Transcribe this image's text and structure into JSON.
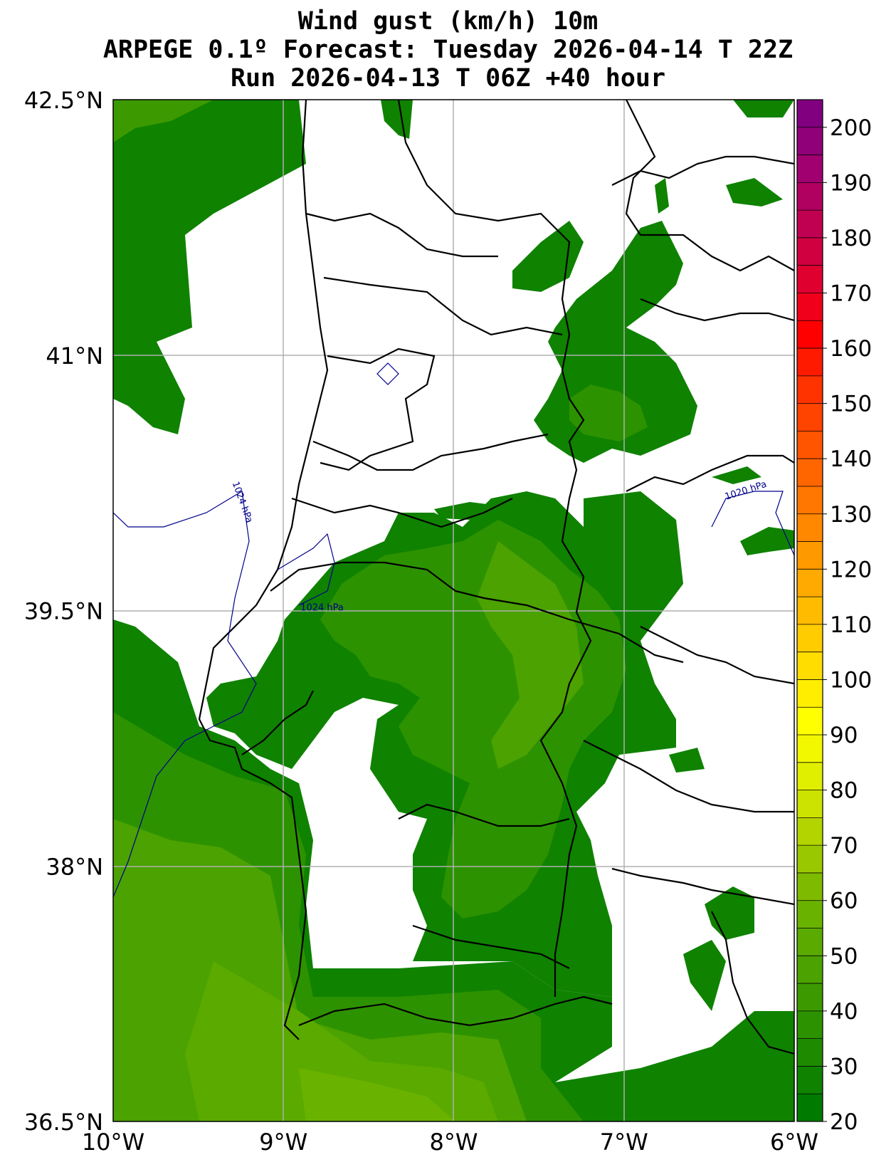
{
  "title": {
    "line1": "Wind gust (km/h) 10m",
    "line2": "ARPEGE 0.1º Forecast: Tuesday 2026-04-14 T 22Z",
    "line3": "Run 2026-04-13 T 06Z +40 hour"
  },
  "map": {
    "lon_range": [
      -10,
      -6
    ],
    "lat_range": [
      36.5,
      42.5
    ],
    "lon_ticks": [
      {
        "value": -10,
        "label": "10°W"
      },
      {
        "value": -9,
        "label": "9°W"
      },
      {
        "value": -8,
        "label": "8°W"
      },
      {
        "value": -7,
        "label": "7°W"
      },
      {
        "value": -6,
        "label": "6°W"
      }
    ],
    "lat_ticks": [
      {
        "value": 42.5,
        "label": "42.5°N"
      },
      {
        "value": 41,
        "label": "41°N"
      },
      {
        "value": 39.5,
        "label": "39.5°N"
      },
      {
        "value": 38,
        "label": "38°N"
      },
      {
        "value": 36.5,
        "label": "36.5°N"
      }
    ],
    "grid": true,
    "isobar_labels": [
      {
        "text": "1024 hPa",
        "lon": -9.3,
        "lat": 40.25
      },
      {
        "text": "1024 hPa",
        "lon": -8.9,
        "lat": 39.5
      },
      {
        "text": "1020 hPa",
        "lon": -6.4,
        "lat": 40.15
      }
    ],
    "isobar_color": "#00008b",
    "coast_color": "#000000"
  },
  "colorbar": {
    "min": 20,
    "max": 205,
    "step": 5,
    "tick_labels": [
      "20",
      "30",
      "40",
      "50",
      "60",
      "70",
      "80",
      "90",
      "100",
      "110",
      "120",
      "130",
      "140",
      "150",
      "160",
      "170",
      "180",
      "190",
      "200"
    ],
    "colors": [
      "#007a00",
      "#0f8200",
      "#1e8a00",
      "#2d9200",
      "#3c9a00",
      "#4ba200",
      "#5aaa00",
      "#69b200",
      "#7eba00",
      "#9ac800",
      "#b4d400",
      "#cce200",
      "#e0ee00",
      "#f2f800",
      "#ffff00",
      "#ffee00",
      "#ffdd00",
      "#ffcc00",
      "#ffbb00",
      "#ffaa00",
      "#ff9900",
      "#ff8800",
      "#ff7700",
      "#ff6600",
      "#ff5500",
      "#ff4400",
      "#ff3300",
      "#ff1a00",
      "#ff0000",
      "#f0001a",
      "#e00030",
      "#d00040",
      "#c00050",
      "#b00060",
      "#a00070",
      "#900078",
      "#800080"
    ]
  },
  "chart_data": {
    "type": "heatmap",
    "variable": "Wind gust (km/h) 10m",
    "x_range": [
      -10,
      -6
    ],
    "y_range": [
      36.5,
      42.5
    ],
    "value_range": [
      20,
      205
    ],
    "regions": [
      {
        "lon": -9.5,
        "lat": 41.8,
        "value": 35
      },
      {
        "lon": -9.5,
        "lat": 37.2,
        "value": 45
      },
      {
        "lon": -8.4,
        "lat": 36.8,
        "value": 50
      },
      {
        "lon": -7.3,
        "lat": 40.9,
        "value": 30
      },
      {
        "lon": -7.6,
        "lat": 39.3,
        "value": 30
      },
      {
        "lon": -7.8,
        "lat": 38.0,
        "value": 30
      }
    ]
  }
}
